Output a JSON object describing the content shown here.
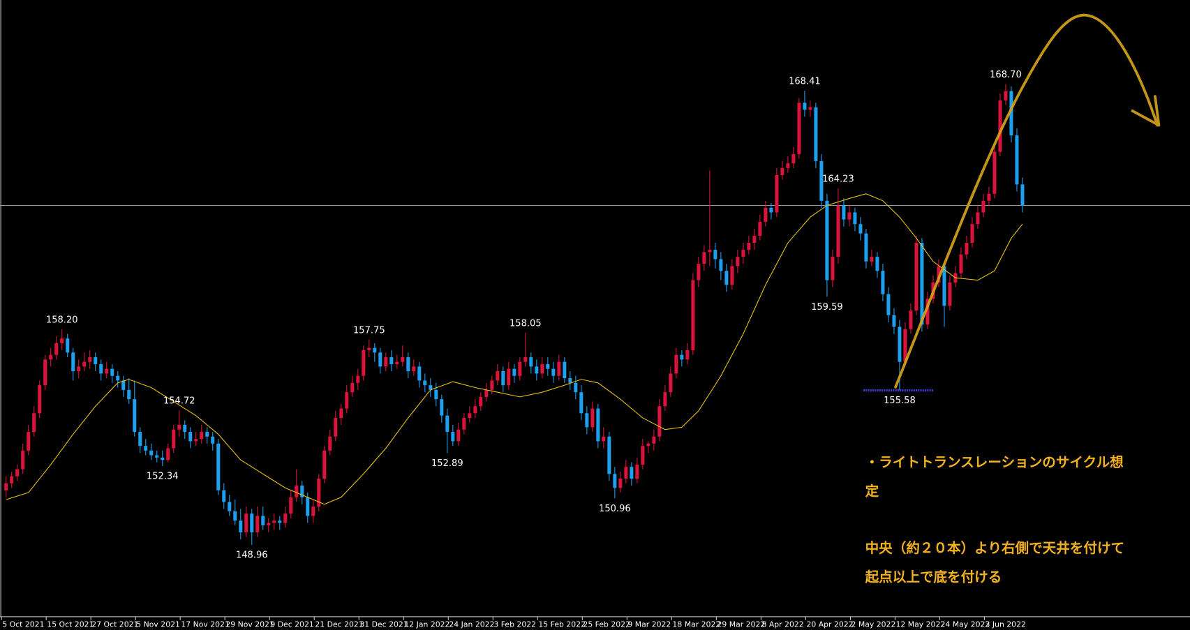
{
  "chart_data": {
    "type": "candlestick",
    "up_color": "#dc143c",
    "down_color": "#1ea0f0",
    "xlim": [
      -1.09,
      212
    ],
    "ylim": [
      145.9,
      172.3
    ],
    "xticks": [
      {
        "value": 0,
        "label": "5 Oct 2021"
      },
      {
        "value": 8,
        "label": "15 Oct 2021"
      },
      {
        "value": 16,
        "label": "27 Oct 2021"
      },
      {
        "value": 24,
        "label": "5 Nov 2021"
      },
      {
        "value": 32,
        "label": "17 Nov 2021"
      },
      {
        "value": 40,
        "label": "29 Nov 2021"
      },
      {
        "value": 48,
        "label": "9 Dec 2021"
      },
      {
        "value": 56,
        "label": "21 Dec 2021"
      },
      {
        "value": 64,
        "label": "31 Dec 2021"
      },
      {
        "value": 72,
        "label": "12 Jan 2022"
      },
      {
        "value": 80,
        "label": "24 Jan 2022"
      },
      {
        "value": 88,
        "label": "3 Feb 2022"
      },
      {
        "value": 96,
        "label": "15 Feb 2022"
      },
      {
        "value": 104,
        "label": "25 Feb 2022"
      },
      {
        "value": 112,
        "label": "9 Mar 2022"
      },
      {
        "value": 120,
        "label": "18 Mar 2022"
      },
      {
        "value": 128,
        "label": "29 Mar 2022"
      },
      {
        "value": 136,
        "label": "8 Apr 2022"
      },
      {
        "value": 144,
        "label": "20 Apr 2022"
      },
      {
        "value": 152,
        "label": "2 May 2022"
      },
      {
        "value": 160,
        "label": "12 May 2022"
      },
      {
        "value": 168,
        "label": "24 May 2022"
      },
      {
        "value": 176,
        "label": "3 Jun 2022"
      }
    ],
    "ohlc": [
      [
        151.3,
        151.9,
        151.0,
        151.6
      ],
      [
        151.6,
        152.1,
        151.4,
        151.9
      ],
      [
        151.9,
        152.4,
        151.7,
        152.2
      ],
      [
        152.2,
        153.3,
        152.0,
        153.0
      ],
      [
        153.0,
        154.1,
        152.8,
        153.8
      ],
      [
        153.8,
        154.9,
        153.6,
        154.6
      ],
      [
        154.6,
        156.0,
        154.4,
        155.8
      ],
      [
        155.8,
        157.1,
        155.6,
        156.9
      ],
      [
        156.9,
        157.4,
        156.6,
        157.1
      ],
      [
        157.1,
        157.9,
        156.9,
        157.6
      ],
      [
        157.6,
        158.2,
        157.3,
        157.8
      ],
      [
        157.8,
        158.0,
        157.0,
        157.2
      ],
      [
        157.2,
        157.4,
        156.0,
        156.4
      ],
      [
        156.4,
        156.9,
        156.1,
        156.6
      ],
      [
        156.6,
        157.2,
        156.4,
        156.8
      ],
      [
        156.8,
        157.3,
        156.5,
        157.0
      ],
      [
        157.0,
        157.2,
        156.4,
        156.7
      ],
      [
        156.7,
        156.9,
        156.0,
        156.3
      ],
      [
        156.3,
        156.8,
        156.1,
        156.5
      ],
      [
        156.5,
        156.7,
        155.9,
        156.2
      ],
      [
        156.2,
        156.4,
        155.7,
        156.0
      ],
      [
        156.0,
        156.2,
        155.3,
        155.6
      ],
      [
        155.6,
        156.1,
        155.0,
        155.2
      ],
      [
        155.2,
        156.0,
        153.6,
        153.8
      ],
      [
        153.8,
        154.0,
        152.9,
        153.2
      ],
      [
        153.2,
        153.5,
        152.8,
        153.0
      ],
      [
        153.0,
        153.3,
        152.6,
        152.8
      ],
      [
        152.8,
        153.0,
        152.5,
        152.7
      ],
      [
        152.7,
        153.0,
        152.34,
        152.6
      ],
      [
        152.6,
        153.3,
        152.5,
        153.1
      ],
      [
        153.1,
        154.1,
        152.9,
        153.9
      ],
      [
        153.9,
        154.72,
        153.6,
        154.1
      ],
      [
        154.1,
        154.3,
        153.5,
        153.8
      ],
      [
        153.8,
        154.0,
        153.1,
        153.4
      ],
      [
        153.4,
        153.8,
        153.2,
        153.5
      ],
      [
        153.5,
        154.1,
        153.3,
        153.8
      ],
      [
        153.8,
        154.0,
        153.3,
        153.6
      ],
      [
        153.6,
        153.8,
        153.0,
        153.3
      ],
      [
        153.3,
        153.5,
        151.1,
        151.3
      ],
      [
        151.3,
        151.6,
        150.5,
        150.8
      ],
      [
        150.8,
        151.1,
        150.2,
        150.4
      ],
      [
        150.4,
        150.9,
        149.8,
        150.0
      ],
      [
        150.0,
        150.5,
        149.2,
        149.5
      ],
      [
        149.5,
        150.6,
        149.3,
        150.3
      ],
      [
        150.3,
        150.5,
        148.96,
        149.5
      ],
      [
        149.5,
        150.6,
        149.3,
        150.2
      ],
      [
        150.2,
        150.6,
        149.6,
        149.8
      ],
      [
        149.8,
        150.1,
        149.5,
        149.9
      ],
      [
        149.9,
        150.3,
        149.6,
        150.0
      ],
      [
        150.0,
        150.2,
        149.6,
        149.9
      ],
      [
        149.9,
        150.6,
        149.7,
        150.3
      ],
      [
        150.3,
        151.3,
        150.1,
        151.0
      ],
      [
        151.0,
        152.2,
        150.8,
        151.5
      ],
      [
        151.5,
        151.7,
        150.7,
        151.0
      ],
      [
        151.0,
        151.2,
        149.9,
        150.2
      ],
      [
        150.2,
        150.9,
        149.9,
        150.6
      ],
      [
        150.6,
        152.0,
        150.4,
        151.8
      ],
      [
        151.8,
        153.2,
        151.6,
        153.0
      ],
      [
        153.0,
        153.9,
        152.8,
        153.6
      ],
      [
        153.6,
        154.7,
        153.4,
        154.4
      ],
      [
        154.4,
        155.0,
        154.1,
        154.8
      ],
      [
        154.8,
        155.8,
        154.6,
        155.5
      ],
      [
        155.5,
        156.2,
        155.3,
        155.9
      ],
      [
        155.9,
        156.5,
        155.6,
        156.2
      ],
      [
        156.2,
        157.5,
        156.0,
        157.3
      ],
      [
        157.3,
        157.75,
        157.0,
        157.4
      ],
      [
        157.4,
        157.6,
        156.8,
        157.2
      ],
      [
        157.2,
        157.4,
        156.3,
        156.6
      ],
      [
        156.6,
        157.2,
        156.4,
        157.0
      ],
      [
        157.0,
        157.3,
        156.4,
        156.7
      ],
      [
        156.7,
        157.1,
        156.5,
        156.8
      ],
      [
        156.8,
        157.5,
        156.6,
        157.0
      ],
      [
        157.0,
        157.2,
        156.1,
        156.4
      ],
      [
        156.4,
        156.9,
        156.2,
        156.6
      ],
      [
        156.6,
        156.8,
        155.7,
        156.0
      ],
      [
        156.0,
        156.3,
        155.5,
        155.8
      ],
      [
        155.8,
        156.1,
        155.3,
        155.6
      ],
      [
        155.6,
        155.9,
        154.9,
        155.2
      ],
      [
        155.2,
        155.4,
        154.2,
        154.5
      ],
      [
        154.5,
        154.8,
        152.89,
        153.8
      ],
      [
        153.8,
        154.1,
        153.2,
        153.4
      ],
      [
        153.4,
        154.2,
        153.2,
        153.9
      ],
      [
        153.9,
        154.6,
        153.7,
        154.4
      ],
      [
        154.4,
        154.9,
        154.2,
        154.6
      ],
      [
        154.6,
        155.2,
        154.4,
        154.9
      ],
      [
        154.9,
        155.5,
        154.7,
        155.3
      ],
      [
        155.3,
        155.9,
        155.1,
        155.6
      ],
      [
        155.6,
        156.2,
        155.4,
        156.0
      ],
      [
        156.0,
        156.7,
        155.8,
        156.4
      ],
      [
        156.4,
        156.6,
        155.5,
        155.8
      ],
      [
        155.8,
        156.8,
        155.6,
        156.5
      ],
      [
        156.5,
        156.7,
        155.9,
        156.2
      ],
      [
        156.2,
        157.0,
        156.0,
        156.8
      ],
      [
        156.8,
        158.05,
        156.6,
        157.0
      ],
      [
        157.0,
        157.2,
        156.3,
        156.6
      ],
      [
        156.6,
        156.9,
        156.0,
        156.3
      ],
      [
        156.3,
        157.0,
        156.1,
        156.7
      ],
      [
        156.7,
        157.0,
        156.2,
        156.5
      ],
      [
        156.5,
        156.8,
        155.9,
        156.2
      ],
      [
        156.2,
        157.1,
        156.0,
        156.8
      ],
      [
        156.8,
        157.0,
        155.9,
        156.1
      ],
      [
        156.1,
        156.4,
        155.6,
        155.9
      ],
      [
        155.9,
        156.2,
        155.2,
        155.5
      ],
      [
        155.5,
        155.8,
        154.3,
        154.6
      ],
      [
        154.6,
        154.9,
        153.7,
        154.0
      ],
      [
        154.0,
        155.1,
        153.8,
        154.8
      ],
      [
        154.8,
        155.0,
        153.1,
        153.4
      ],
      [
        153.4,
        154.0,
        153.1,
        153.6
      ],
      [
        153.6,
        153.8,
        151.7,
        152.0
      ],
      [
        152.0,
        152.3,
        150.96,
        151.4
      ],
      [
        151.4,
        152.1,
        151.2,
        151.8
      ],
      [
        151.8,
        152.6,
        151.6,
        152.3
      ],
      [
        152.3,
        152.5,
        151.5,
        151.8
      ],
      [
        151.8,
        152.7,
        151.6,
        152.4
      ],
      [
        152.4,
        153.5,
        152.2,
        153.2
      ],
      [
        153.2,
        153.4,
        152.9,
        153.3
      ],
      [
        153.3,
        153.9,
        153.0,
        153.6
      ],
      [
        153.6,
        155.2,
        153.4,
        154.9
      ],
      [
        154.9,
        155.8,
        154.7,
        155.5
      ],
      [
        155.5,
        156.6,
        155.3,
        156.3
      ],
      [
        156.3,
        157.4,
        156.1,
        157.1
      ],
      [
        157.1,
        157.3,
        156.6,
        156.9
      ],
      [
        156.9,
        157.6,
        156.7,
        157.3
      ],
      [
        157.3,
        160.6,
        157.1,
        160.3
      ],
      [
        160.3,
        161.3,
        160.0,
        161.0
      ],
      [
        161.0,
        161.8,
        160.7,
        161.5
      ],
      [
        161.5,
        164.99,
        160.9,
        161.6
      ],
      [
        161.6,
        161.9,
        160.8,
        161.2
      ],
      [
        161.2,
        161.5,
        160.3,
        160.7
      ],
      [
        160.7,
        161.0,
        159.8,
        160.1
      ],
      [
        160.1,
        161.2,
        159.9,
        160.9
      ],
      [
        160.9,
        161.6,
        160.6,
        161.3
      ],
      [
        161.3,
        161.9,
        161.0,
        161.6
      ],
      [
        161.6,
        162.2,
        161.4,
        161.9
      ],
      [
        161.9,
        162.5,
        161.6,
        162.2
      ],
      [
        162.2,
        163.1,
        162.0,
        162.8
      ],
      [
        162.8,
        163.7,
        162.6,
        163.4
      ],
      [
        163.4,
        163.6,
        162.9,
        163.2
      ],
      [
        163.2,
        165.1,
        163.0,
        164.8
      ],
      [
        164.8,
        165.4,
        164.6,
        165.1
      ],
      [
        165.1,
        165.6,
        164.9,
        165.3
      ],
      [
        165.3,
        166.0,
        165.1,
        165.7
      ],
      [
        165.7,
        168.1,
        165.5,
        167.9
      ],
      [
        167.9,
        168.41,
        167.3,
        167.6
      ],
      [
        167.6,
        168.0,
        167.3,
        167.7
      ],
      [
        167.7,
        167.9,
        165.1,
        165.4
      ],
      [
        165.4,
        165.7,
        163.4,
        163.7
      ],
      [
        163.7,
        164.0,
        159.59,
        160.3
      ],
      [
        160.3,
        161.6,
        160.0,
        161.3
      ],
      [
        161.3,
        164.23,
        161.0,
        163.5
      ],
      [
        163.5,
        163.8,
        162.6,
        162.9
      ],
      [
        162.9,
        163.5,
        162.6,
        163.2
      ],
      [
        163.2,
        163.4,
        162.4,
        162.7
      ],
      [
        162.7,
        163.0,
        162.0,
        162.3
      ],
      [
        162.3,
        162.5,
        160.8,
        161.1
      ],
      [
        161.1,
        161.6,
        160.9,
        161.3
      ],
      [
        161.3,
        161.5,
        160.4,
        160.7
      ],
      [
        160.7,
        161.0,
        159.4,
        159.7
      ],
      [
        159.7,
        160.0,
        158.5,
        158.8
      ],
      [
        158.8,
        159.1,
        158.0,
        158.3
      ],
      [
        158.3,
        158.6,
        155.58,
        156.8
      ],
      [
        156.8,
        158.5,
        156.6,
        158.2
      ],
      [
        158.2,
        159.3,
        158.0,
        159.0
      ],
      [
        159.0,
        162.2,
        158.8,
        161.9
      ],
      [
        161.9,
        162.1,
        158.1,
        158.4
      ],
      [
        158.4,
        159.8,
        158.2,
        159.5
      ],
      [
        159.5,
        160.5,
        159.3,
        160.2
      ],
      [
        160.2,
        161.2,
        160.0,
        160.9
      ],
      [
        160.9,
        161.1,
        158.3,
        159.2
      ],
      [
        159.2,
        160.5,
        159.0,
        160.2
      ],
      [
        160.2,
        160.9,
        160.0,
        160.6
      ],
      [
        160.6,
        161.7,
        160.4,
        161.4
      ],
      [
        161.4,
        162.2,
        161.2,
        161.9
      ],
      [
        161.9,
        163.0,
        161.7,
        162.7
      ],
      [
        162.7,
        163.5,
        162.5,
        163.2
      ],
      [
        163.2,
        164.0,
        163.0,
        163.7
      ],
      [
        163.7,
        164.3,
        163.5,
        164.0
      ],
      [
        164.0,
        166.1,
        163.8,
        165.8
      ],
      [
        165.8,
        168.3,
        165.6,
        168.0
      ],
      [
        168.0,
        168.7,
        167.8,
        168.4
      ],
      [
        168.4,
        168.6,
        166.2,
        166.5
      ],
      [
        166.5,
        166.8,
        164.1,
        164.4
      ],
      [
        164.4,
        164.7,
        163.2,
        163.5
      ]
    ],
    "ma": {
      "color": "#e8c412",
      "x": [
        0,
        4,
        8,
        12,
        16,
        20,
        22,
        26,
        30,
        34,
        38,
        42,
        46,
        50,
        54,
        57,
        60,
        64,
        68,
        72,
        76,
        80,
        84,
        88,
        92,
        96,
        100,
        103,
        106,
        110,
        114,
        118,
        121,
        124,
        128,
        132,
        136,
        140,
        144,
        147,
        151,
        154,
        157,
        160,
        163,
        166,
        170,
        174,
        177,
        180,
        182
      ],
      "values": [
        150.9,
        151.2,
        152.4,
        153.7,
        154.9,
        155.9,
        156.05,
        155.7,
        155.1,
        154.5,
        153.7,
        152.6,
        152.0,
        151.4,
        151.0,
        150.7,
        151.0,
        152.0,
        153.1,
        154.4,
        155.6,
        155.95,
        155.7,
        155.5,
        155.3,
        155.5,
        155.8,
        156.05,
        155.9,
        155.2,
        154.4,
        153.9,
        154.0,
        154.7,
        156.2,
        158.0,
        160.1,
        161.9,
        163.0,
        163.5,
        163.8,
        164.0,
        163.7,
        163.0,
        162.1,
        161.1,
        160.4,
        160.3,
        160.7,
        162.1,
        162.7
      ]
    },
    "price_line": 163.5,
    "price_line_color": "#a8b2c0",
    "level": {
      "value": 155.58,
      "x": [
        153.5,
        166
      ],
      "color": "#3a3acd"
    },
    "labels": [
      {
        "candle": 10,
        "value": 158.2,
        "label": "158.20",
        "kind": "high"
      },
      {
        "candle": 28,
        "value": 152.34,
        "label": "152.34",
        "kind": "low"
      },
      {
        "candle": 31,
        "value": 154.72,
        "label": "154.72",
        "kind": "high"
      },
      {
        "candle": 44,
        "value": 148.96,
        "label": "148.96",
        "kind": "low"
      },
      {
        "candle": 65,
        "value": 157.75,
        "label": "157.75",
        "kind": "high"
      },
      {
        "candle": 79,
        "value": 152.89,
        "label": "152.89",
        "kind": "low"
      },
      {
        "candle": 93,
        "value": 158.05,
        "label": "158.05",
        "kind": "high"
      },
      {
        "candle": 109,
        "value": 150.96,
        "label": "150.96",
        "kind": "low"
      },
      {
        "candle": 143,
        "value": 168.41,
        "label": "168.41",
        "kind": "high"
      },
      {
        "candle": 149,
        "value": 164.23,
        "label": "164.23",
        "kind": "high"
      },
      {
        "candle": 147,
        "value": 159.59,
        "label": "159.59",
        "kind": "low"
      },
      {
        "candle": 160,
        "value": 155.58,
        "label": "155.58",
        "kind": "low"
      },
      {
        "candle": 179,
        "value": 168.7,
        "label": "168.70",
        "kind": "high"
      }
    ],
    "annotations": [
      "・ライトトランスレーションのサイクル想定",
      "中央（約２０本）より右側で天井を付けて",
      "起点以上で底を付ける"
    ]
  }
}
